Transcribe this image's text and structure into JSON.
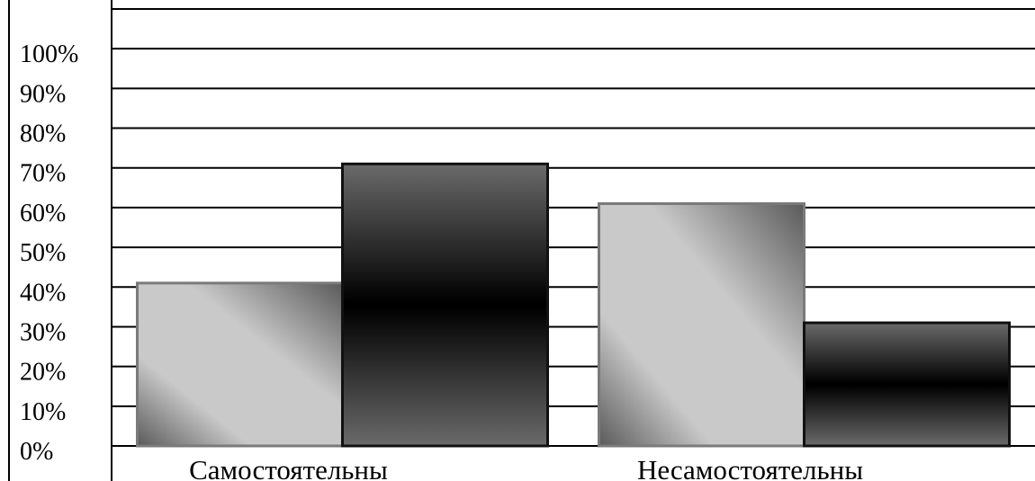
{
  "chart_data": {
    "type": "bar",
    "title": "",
    "xlabel": "",
    "ylabel": "",
    "categories": [
      "Самостоятельны",
      "Несамостоятельны"
    ],
    "series": [
      {
        "values": [
          41,
          61
        ],
        "color": "#c8c8c8"
      },
      {
        "values": [
          71,
          31
        ],
        "color": "#2a2a2a"
      }
    ],
    "y_ticks": [
      "0%",
      "10%",
      "20%",
      "30%",
      "40%",
      "50%",
      "60%",
      "70%",
      "80%",
      "90%",
      "100%"
    ],
    "ylim": [
      0,
      110
    ],
    "grid": true,
    "legend": "none"
  }
}
